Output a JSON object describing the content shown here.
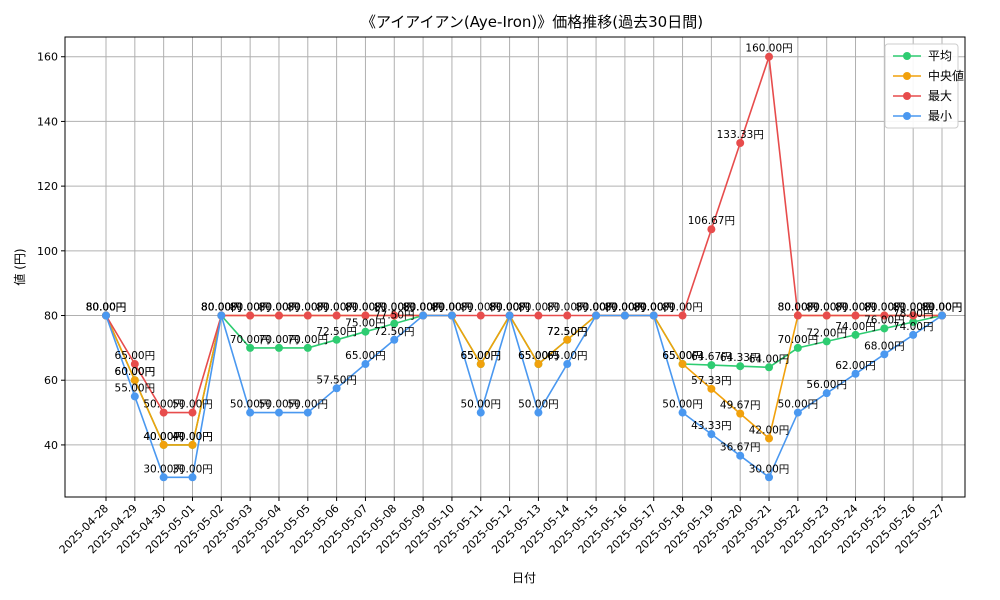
{
  "chart_data": {
    "type": "line",
    "title": "《アイアイアン(Aye-Iron)》価格推移(過去30日間)",
    "xlabel": "日付",
    "ylabel": "値 (円)",
    "value_suffix": "円",
    "ylim": [
      23.9,
      166.1
    ],
    "yticks": [
      40,
      60,
      80,
      100,
      120,
      140,
      160
    ],
    "grid": true,
    "legend_position": "top-right",
    "x": [
      "2025-04-28",
      "2025-04-29",
      "2025-04-30",
      "2025-05-01",
      "2025-05-02",
      "2025-05-03",
      "2025-05-04",
      "2025-05-05",
      "2025-05-06",
      "2025-05-07",
      "2025-05-08",
      "2025-05-09",
      "2025-05-10",
      "2025-05-11",
      "2025-05-12",
      "2025-05-13",
      "2025-05-14",
      "2025-05-15",
      "2025-05-16",
      "2025-05-17",
      "2025-05-18",
      "2025-05-19",
      "2025-05-20",
      "2025-05-21",
      "2025-05-22",
      "2025-05-23",
      "2025-05-24",
      "2025-05-25",
      "2025-05-26",
      "2025-05-27"
    ],
    "series": [
      {
        "name": "平均",
        "color": "#2ecc71",
        "values": [
          80,
          60,
          40,
          40,
          80,
          70,
          70,
          70,
          72.5,
          75,
          77.5,
          80,
          80,
          65,
          80,
          65,
          72.5,
          80,
          80,
          80,
          65,
          64.67,
          64.33,
          64,
          70,
          72,
          74,
          76,
          78,
          80
        ]
      },
      {
        "name": "中央値",
        "color": "#f1a10c",
        "values": [
          80,
          60,
          40,
          40,
          80,
          80,
          80,
          80,
          80,
          80,
          80,
          80,
          80,
          65,
          80,
          65,
          72.5,
          80,
          80,
          80,
          65,
          57.33,
          49.67,
          42,
          80,
          80,
          80,
          80,
          80,
          80
        ]
      },
      {
        "name": "最大",
        "color": "#e74c4c",
        "values": [
          80,
          65,
          50,
          50,
          80,
          80,
          80,
          80,
          80,
          80,
          80,
          80,
          80,
          80,
          80,
          80,
          80,
          80,
          80,
          80,
          80,
          106.67,
          133.33,
          160,
          80,
          80,
          80,
          80,
          80,
          80
        ]
      },
      {
        "name": "最小",
        "color": "#4a98f0",
        "values": [
          80,
          55,
          30,
          30,
          80,
          50,
          50,
          50,
          57.5,
          65,
          72.5,
          80,
          80,
          50,
          80,
          50,
          65,
          80,
          80,
          80,
          50,
          43.33,
          36.67,
          30,
          50,
          56,
          62,
          68,
          74,
          80
        ]
      }
    ]
  }
}
